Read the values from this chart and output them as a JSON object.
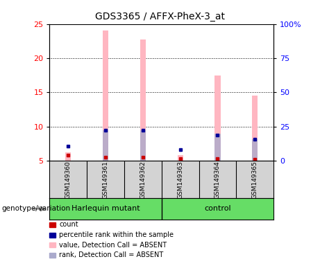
{
  "title": "GDS3365 / AFFX-PheX-3_at",
  "samples": [
    "GSM149360",
    "GSM149361",
    "GSM149362",
    "GSM149363",
    "GSM149364",
    "GSM149365"
  ],
  "group_labels": [
    "Harlequin mutant",
    "control"
  ],
  "pink_bar_tops": [
    6.2,
    24.0,
    22.7,
    5.8,
    17.5,
    14.5
  ],
  "rank_bar_tops": [
    null,
    9.5,
    9.5,
    null,
    9.0,
    8.2
  ],
  "red_dot_y": [
    5.8,
    5.5,
    5.5,
    5.3,
    5.3,
    5.2
  ],
  "blue_dot_y": [
    7.2,
    9.5,
    9.5,
    6.6,
    8.8,
    8.2
  ],
  "ylim_left": [
    5,
    25
  ],
  "ylim_right": [
    0,
    100
  ],
  "yticks_left": [
    5,
    10,
    15,
    20,
    25
  ],
  "ytick_labels_left": [
    "5",
    "10",
    "15",
    "20",
    "25"
  ],
  "yticks_right_vals": [
    5,
    10,
    15,
    20,
    25
  ],
  "yticks_right_labels": [
    "0",
    "25",
    "50",
    "75",
    "100%"
  ],
  "bar_bottom": 5.0,
  "bar_width": 0.15,
  "pink_color": "#FFB6C1",
  "light_blue_color": "#AAAACC",
  "red_color": "#CC0000",
  "blue_color": "#000099",
  "bg_plot": "#FFFFFF",
  "bg_sample_area": "#D3D3D3",
  "bg_group_area": "#66DD66",
  "title_fontsize": 10,
  "legend_items": [
    {
      "color": "#CC0000",
      "label": "count"
    },
    {
      "color": "#000099",
      "label": "percentile rank within the sample"
    },
    {
      "color": "#FFB6C1",
      "label": "value, Detection Call = ABSENT"
    },
    {
      "color": "#AAAACC",
      "label": "rank, Detection Call = ABSENT"
    }
  ],
  "genotype_label": "genotype/variation"
}
